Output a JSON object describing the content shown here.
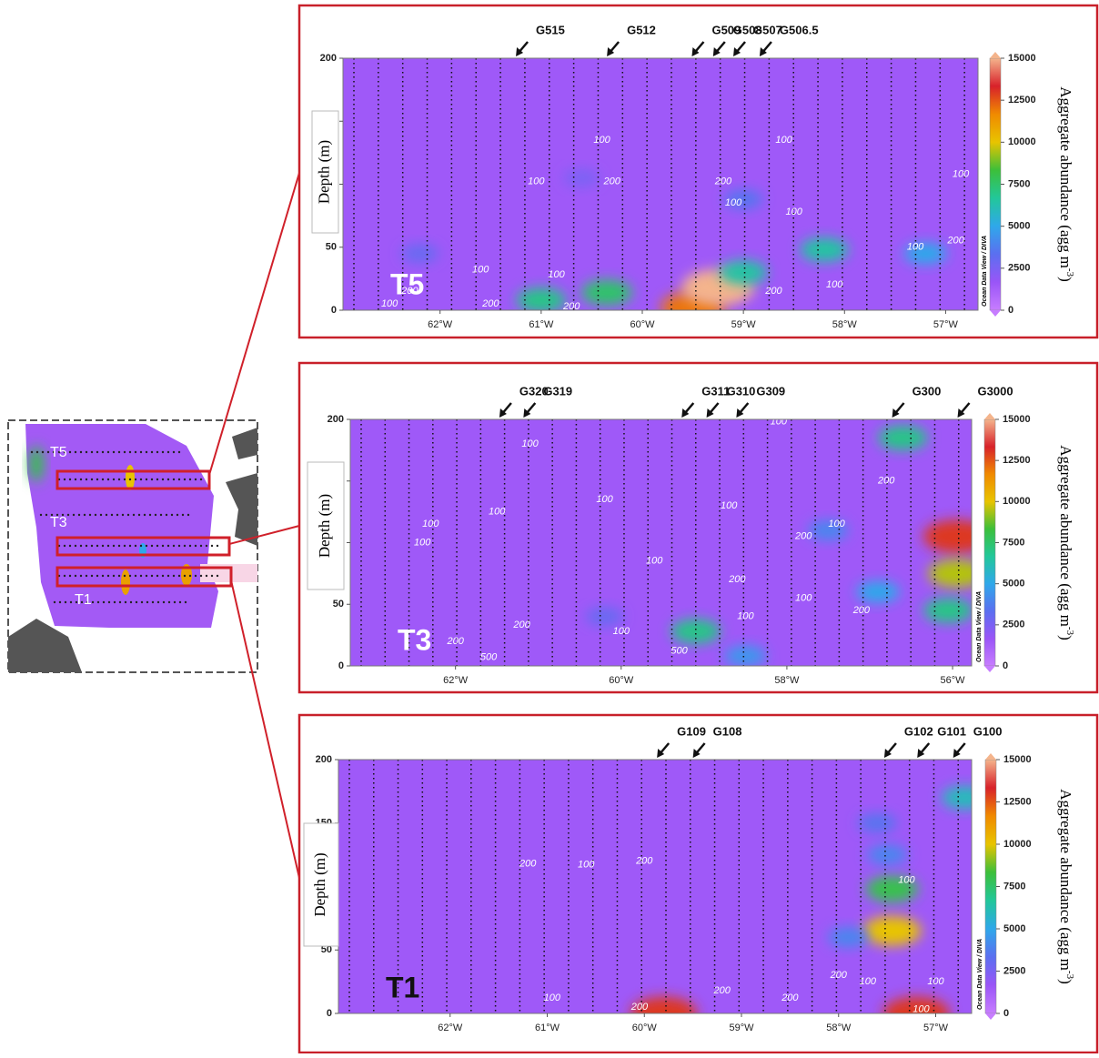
{
  "inset": {
    "labels": [
      "T5",
      "T3",
      "T1"
    ]
  },
  "chart_data": [
    {
      "type": "contour",
      "panel_label": "T5",
      "panel_label_color": "#ffffff",
      "y_label": "Depth (m)",
      "colorbar_label": "Aggregate abundance (agg m",
      "colorbar_label_sup": "-3",
      "colorbar_label_end": ")",
      "credit": "Ocean Data View / DIVA",
      "xlim": [
        -62.96,
        -56.68
      ],
      "xticks": [
        {
          "value": -62,
          "label": "62°W"
        },
        {
          "value": -61,
          "label": "61°W"
        },
        {
          "value": -60,
          "label": "60°W"
        },
        {
          "value": -59,
          "label": "59°W"
        },
        {
          "value": -58,
          "label": "58°W"
        },
        {
          "value": -57,
          "label": "57°W"
        }
      ],
      "ylim": [
        200,
        0
      ],
      "yticks": [
        0,
        50,
        100,
        150,
        200
      ],
      "clim": [
        0,
        15000
      ],
      "cticks": [
        0,
        2500,
        5000,
        7500,
        10000,
        12500,
        15000
      ],
      "colorscale": [
        "#c77dff",
        "#9a55f7",
        "#5b6ff0",
        "#2fa8ea",
        "#22c79a",
        "#3cbf3a",
        "#e8c400",
        "#f08a00",
        "#d8222a",
        "#f4b48c"
      ],
      "field_base": 1500,
      "stations": [
        {
          "label": "G515",
          "x": -61.25
        },
        {
          "label": "G512",
          "x": -60.35
        },
        {
          "label": "G509",
          "x": -59.51
        },
        {
          "label": "G508",
          "x": -59.3
        },
        {
          "label": "G507",
          "x": -59.1
        },
        {
          "label": "G506.5",
          "x": -58.84
        }
      ],
      "hotspots": [
        {
          "x": -59.5,
          "y": 2,
          "value": 12000
        },
        {
          "x": -59.25,
          "y": 18,
          "value": 15000
        },
        {
          "x": -60.35,
          "y": 14,
          "value": 7500
        },
        {
          "x": -61.0,
          "y": 8,
          "value": 7000
        },
        {
          "x": -59.0,
          "y": 30,
          "value": 6500
        },
        {
          "x": -58.2,
          "y": 48,
          "value": 6500
        },
        {
          "x": -57.2,
          "y": 45,
          "value": 5000
        },
        {
          "x": -59.0,
          "y": 88,
          "value": 3500
        },
        {
          "x": -62.2,
          "y": 45,
          "value": 3000
        },
        {
          "x": -60.6,
          "y": 105,
          "value": 2500
        }
      ],
      "contour_labels": [
        {
          "x": -62.5,
          "y": 5,
          "value": 100
        },
        {
          "x": -61.5,
          "y": 5,
          "value": 200
        },
        {
          "x": -60.7,
          "y": 3,
          "value": 200
        },
        {
          "x": -62.3,
          "y": 15,
          "value": 200
        },
        {
          "x": -61.6,
          "y": 32,
          "value": 100
        },
        {
          "x": -60.85,
          "y": 28,
          "value": 100
        },
        {
          "x": -58.7,
          "y": 15,
          "value": 200
        },
        {
          "x": -58.1,
          "y": 20,
          "value": 100
        },
        {
          "x": -57.3,
          "y": 50,
          "value": 100
        },
        {
          "x": -56.9,
          "y": 55,
          "value": 200
        },
        {
          "x": -59.1,
          "y": 85,
          "value": 100
        },
        {
          "x": -58.5,
          "y": 78,
          "value": 100
        },
        {
          "x": -61.05,
          "y": 102,
          "value": 100
        },
        {
          "x": -60.3,
          "y": 102,
          "value": 200
        },
        {
          "x": -59.2,
          "y": 102,
          "value": 200
        },
        {
          "x": -56.85,
          "y": 108,
          "value": 100
        },
        {
          "x": -60.4,
          "y": 135,
          "value": 100
        },
        {
          "x": -58.6,
          "y": 135,
          "value": 100
        }
      ],
      "no_data": []
    },
    {
      "type": "contour",
      "panel_label": "T3",
      "panel_label_color": "#ffffff",
      "y_label": "Depth (m)",
      "colorbar_label": "Aggregate abundance (agg m",
      "colorbar_label_sup": "-3",
      "colorbar_label_end": ")",
      "credit": "Ocean Data View / DIVA",
      "xlim": [
        -63.27,
        -55.77
      ],
      "xticks": [
        {
          "value": -62,
          "label": "62°W"
        },
        {
          "value": -60,
          "label": "60°W"
        },
        {
          "value": -58,
          "label": "58°W"
        },
        {
          "value": -56,
          "label": "56°W"
        }
      ],
      "ylim": [
        200,
        0
      ],
      "yticks": [
        0,
        50,
        100,
        150,
        200
      ],
      "clim": [
        0,
        15000
      ],
      "cticks": [
        0,
        2500,
        5000,
        7500,
        10000,
        12500,
        15000
      ],
      "colorscale": [
        "#c77dff",
        "#9a55f7",
        "#5b6ff0",
        "#2fa8ea",
        "#22c79a",
        "#3cbf3a",
        "#e8c400",
        "#f08a00",
        "#d8222a",
        "#f4b48c"
      ],
      "field_base": 1500,
      "stations": [
        {
          "label": "G320",
          "x": -61.47
        },
        {
          "label": "G319",
          "x": -61.18
        },
        {
          "label": "G311",
          "x": -59.27
        },
        {
          "label": "G310",
          "x": -58.97
        },
        {
          "label": "G309",
          "x": -58.61
        },
        {
          "label": "G300",
          "x": -56.73
        },
        {
          "label": "G3000",
          "x": -55.94
        }
      ],
      "hotspots": [
        {
          "x": -59.1,
          "y": 28,
          "value": 7000
        },
        {
          "x": -55.95,
          "y": 105,
          "value": 13000
        },
        {
          "x": -55.95,
          "y": 75,
          "value": 9500
        },
        {
          "x": -56.05,
          "y": 45,
          "value": 7000
        },
        {
          "x": -56.9,
          "y": 60,
          "value": 5000
        },
        {
          "x": -56.6,
          "y": 185,
          "value": 7000
        },
        {
          "x": -58.5,
          "y": 8,
          "value": 4500
        },
        {
          "x": -57.5,
          "y": 110,
          "value": 4000
        },
        {
          "x": -60.2,
          "y": 40,
          "value": 3000
        }
      ],
      "contour_labels": [
        {
          "x": -61.6,
          "y": 7,
          "value": 500
        },
        {
          "x": -62.0,
          "y": 20,
          "value": 200
        },
        {
          "x": -61.2,
          "y": 33,
          "value": 200
        },
        {
          "x": -60.0,
          "y": 28,
          "value": 100
        },
        {
          "x": -59.3,
          "y": 12,
          "value": 500
        },
        {
          "x": -58.5,
          "y": 40,
          "value": 100
        },
        {
          "x": -58.6,
          "y": 70,
          "value": 200
        },
        {
          "x": -57.8,
          "y": 55,
          "value": 100
        },
        {
          "x": -57.1,
          "y": 45,
          "value": 200
        },
        {
          "x": -59.6,
          "y": 85,
          "value": 100
        },
        {
          "x": -62.4,
          "y": 100,
          "value": 100
        },
        {
          "x": -62.3,
          "y": 115,
          "value": 100
        },
        {
          "x": -61.5,
          "y": 125,
          "value": 100
        },
        {
          "x": -60.2,
          "y": 135,
          "value": 100
        },
        {
          "x": -58.7,
          "y": 130,
          "value": 100
        },
        {
          "x": -57.8,
          "y": 105,
          "value": 200
        },
        {
          "x": -57.4,
          "y": 115,
          "value": 100
        },
        {
          "x": -56.8,
          "y": 150,
          "value": 200
        },
        {
          "x": -61.1,
          "y": 180,
          "value": 100
        },
        {
          "x": -58.1,
          "y": 198,
          "value": 100
        }
      ],
      "no_data": [
        [
          -63.27,
          -62.63,
          0,
          200
        ],
        [
          -56.35,
          -55.77,
          125,
          200
        ],
        [
          -56.7,
          -56.35,
          178,
          200
        ]
      ]
    },
    {
      "type": "contour",
      "panel_label": "T1",
      "panel_label_color": "#111111",
      "y_label": "Depth (m)",
      "colorbar_label": "Aggregate abundance (agg m",
      "colorbar_label_sup": "-3",
      "colorbar_label_end": ")",
      "credit": "Ocean Data View / DIVA",
      "xlim": [
        -63.15,
        -56.63
      ],
      "xticks": [
        {
          "value": -62,
          "label": "62°W"
        },
        {
          "value": -61,
          "label": "61°W"
        },
        {
          "value": -60,
          "label": "60°W"
        },
        {
          "value": -59,
          "label": "59°W"
        },
        {
          "value": -58,
          "label": "58°W"
        },
        {
          "value": -57,
          "label": "57°W"
        }
      ],
      "ylim": [
        200,
        0
      ],
      "yticks": [
        0,
        50,
        100,
        150,
        200
      ],
      "clim": [
        0,
        15000
      ],
      "cticks": [
        0,
        2500,
        5000,
        7500,
        10000,
        12500,
        15000
      ],
      "colorscale": [
        "#c77dff",
        "#9a55f7",
        "#5b6ff0",
        "#2fa8ea",
        "#22c79a",
        "#3cbf3a",
        "#e8c400",
        "#f08a00",
        "#d8222a",
        "#f4b48c"
      ],
      "field_base": 1500,
      "stations": [
        {
          "label": "G109",
          "x": -59.87
        },
        {
          "label": "G108",
          "x": -59.5
        },
        {
          "label": "G102",
          "x": -57.53
        },
        {
          "label": "G101",
          "x": -57.19
        },
        {
          "label": "G100",
          "x": -56.82
        }
      ],
      "hotspots": [
        {
          "x": -59.8,
          "y": 0,
          "value": 13000
        },
        {
          "x": -57.2,
          "y": 0,
          "value": 13000
        },
        {
          "x": -57.45,
          "y": 65,
          "value": 10000
        },
        {
          "x": -57.45,
          "y": 98,
          "value": 8000
        },
        {
          "x": -57.5,
          "y": 125,
          "value": 4000
        },
        {
          "x": -56.7,
          "y": 170,
          "value": 6000
        },
        {
          "x": -57.9,
          "y": 60,
          "value": 4000
        },
        {
          "x": -57.6,
          "y": 150,
          "value": 3500
        }
      ],
      "contour_labels": [
        {
          "x": -60.05,
          "y": 5,
          "value": 200
        },
        {
          "x": -60.95,
          "y": 12,
          "value": 100
        },
        {
          "x": -58.5,
          "y": 12,
          "value": 200
        },
        {
          "x": -59.2,
          "y": 18,
          "value": 200
        },
        {
          "x": -58.0,
          "y": 30,
          "value": 200
        },
        {
          "x": -57.7,
          "y": 25,
          "value": 100
        },
        {
          "x": -57.15,
          "y": 3,
          "value": 100
        },
        {
          "x": -57.0,
          "y": 25,
          "value": 100
        },
        {
          "x": -57.3,
          "y": 105,
          "value": 100
        },
        {
          "x": -61.2,
          "y": 118,
          "value": 200
        },
        {
          "x": -60.6,
          "y": 117,
          "value": 100
        },
        {
          "x": -60.0,
          "y": 120,
          "value": 200
        }
      ],
      "no_data": [
        [
          -62.66,
          -61.41,
          0,
          200
        ]
      ]
    }
  ]
}
